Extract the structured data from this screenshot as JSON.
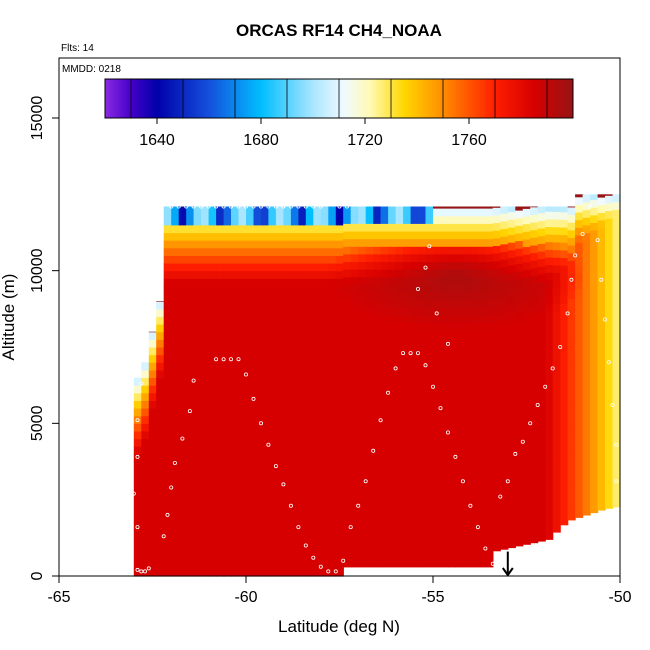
{
  "chart_data": {
    "type": "heatmap",
    "title": "ORCAS RF14 CH4_NOAA",
    "annotations": {
      "flights": "Flts: 14",
      "date": "MMDD: 0218"
    },
    "xlabel": "Latitude (deg N)",
    "ylabel": "Altitude (m)",
    "xlim": [
      -65,
      -50
    ],
    "ylim": [
      0,
      16500
    ],
    "x_ticks": [
      -65,
      -60,
      -55,
      -50
    ],
    "y_ticks": [
      0,
      5000,
      10000,
      15000
    ],
    "colorbar": {
      "range": [
        1620,
        1800
      ],
      "ticks": [
        1640,
        1680,
        1720,
        1760
      ],
      "placement": "top-inside"
    },
    "field": {
      "background_value": 1785,
      "profile_top": [
        [
          -63,
          6500
        ],
        [
          -62.8,
          7000
        ],
        [
          -62.6,
          8000
        ],
        [
          -62.5,
          8500
        ],
        [
          -62.3,
          9500
        ],
        [
          -62.2,
          10500
        ],
        [
          -62.2,
          11000
        ],
        [
          -62.2,
          12100
        ],
        [
          -51.2,
          12100
        ],
        [
          -51.2,
          12500
        ],
        [
          -50,
          12500
        ]
      ],
      "profile_bottom": [
        [
          -63,
          0
        ],
        [
          -57.5,
          0
        ],
        [
          -57.5,
          300
        ],
        [
          -53.5,
          300
        ],
        [
          -53.5,
          800
        ],
        [
          -52,
          1200
        ],
        [
          -51.5,
          1800
        ],
        [
          -50.5,
          2200
        ],
        [
          -50,
          2300
        ]
      ],
      "upper_core_value": 1795,
      "upper_core_center": [
        -54.5,
        9800
      ],
      "low_zone_values": [
        1640,
        1680,
        1700,
        1720,
        1740,
        1760
      ]
    },
    "flight_track": [
      [
        -62.9,
        200
      ],
      [
        -62.8,
        150
      ],
      [
        -62.7,
        150
      ],
      [
        -62.6,
        250
      ],
      [
        -62.9,
        1600
      ],
      [
        -63.0,
        2700
      ],
      [
        -62.9,
        3900
      ],
      [
        -62.9,
        5100
      ],
      [
        -62.8,
        6300
      ],
      [
        -62.7,
        7600
      ],
      [
        -62.2,
        1300
      ],
      [
        -62.1,
        2000
      ],
      [
        -62.0,
        2900
      ],
      [
        -61.9,
        3700
      ],
      [
        -61.7,
        4500
      ],
      [
        -61.5,
        5400
      ],
      [
        -61.4,
        6400
      ],
      [
        -60.8,
        7100
      ],
      [
        -60.6,
        7100
      ],
      [
        -60.4,
        7100
      ],
      [
        -60.2,
        7100
      ],
      [
        -60.0,
        6600
      ],
      [
        -59.8,
        5800
      ],
      [
        -59.6,
        5000
      ],
      [
        -59.4,
        4300
      ],
      [
        -59.2,
        3600
      ],
      [
        -59.0,
        3000
      ],
      [
        -58.8,
        2300
      ],
      [
        -58.6,
        1600
      ],
      [
        -58.4,
        1000
      ],
      [
        -58.2,
        600
      ],
      [
        -58.0,
        300
      ],
      [
        -57.8,
        150
      ],
      [
        -57.6,
        150
      ],
      [
        -57.4,
        500
      ],
      [
        -57.2,
        1600
      ],
      [
        -57.0,
        2300
      ],
      [
        -56.8,
        3100
      ],
      [
        -56.6,
        4100
      ],
      [
        -56.4,
        5100
      ],
      [
        -56.2,
        6000
      ],
      [
        -56.0,
        6800
      ],
      [
        -55.8,
        7300
      ],
      [
        -55.6,
        7300
      ],
      [
        -55.4,
        7300
      ],
      [
        -55.2,
        6900
      ],
      [
        -55.0,
        6200
      ],
      [
        -54.8,
        5500
      ],
      [
        -54.6,
        4700
      ],
      [
        -54.4,
        3900
      ],
      [
        -54.2,
        3100
      ],
      [
        -54.0,
        2300
      ],
      [
        -53.8,
        1600
      ],
      [
        -53.6,
        900
      ],
      [
        -53.4,
        400
      ],
      [
        -53.2,
        300
      ],
      [
        -53.0,
        300
      ],
      [
        -55.4,
        9400
      ],
      [
        -55.2,
        10100
      ],
      [
        -55.1,
        10800
      ],
      [
        -54.9,
        8600
      ],
      [
        -54.6,
        7600
      ],
      [
        -53.2,
        2600
      ],
      [
        -53.0,
        3100
      ],
      [
        -52.8,
        4000
      ],
      [
        -52.6,
        4400
      ],
      [
        -52.4,
        5000
      ],
      [
        -52.2,
        5600
      ],
      [
        -52.0,
        6200
      ],
      [
        -51.8,
        6800
      ],
      [
        -51.6,
        7500
      ],
      [
        -51.4,
        8600
      ],
      [
        -51.3,
        9700
      ],
      [
        -51.2,
        10500
      ],
      [
        -51.0,
        11200
      ],
      [
        -50.8,
        12100
      ],
      [
        -50.6,
        11000
      ],
      [
        -50.5,
        9700
      ],
      [
        -50.4,
        8400
      ],
      [
        -50.3,
        7000
      ],
      [
        -50.2,
        5600
      ],
      [
        -50.1,
        4300
      ],
      [
        -50.1,
        3100
      ],
      [
        -50.0,
        2200
      ],
      [
        -62.0,
        12100
      ],
      [
        -61.8,
        12100
      ],
      [
        -61.6,
        12100
      ],
      [
        -61.4,
        12100
      ],
      [
        -61.2,
        12100
      ],
      [
        -61.0,
        12100
      ],
      [
        -60.8,
        12100
      ],
      [
        -60.6,
        12100
      ],
      [
        -60.4,
        12100
      ],
      [
        -60.2,
        12100
      ],
      [
        -60.0,
        12100
      ],
      [
        -59.8,
        12100
      ],
      [
        -59.6,
        12100
      ],
      [
        -59.4,
        12100
      ],
      [
        -59.2,
        12100
      ],
      [
        -59.0,
        12100
      ],
      [
        -58.8,
        12100
      ],
      [
        -58.6,
        12100
      ],
      [
        -58.4,
        12100
      ],
      [
        -58.2,
        12100
      ],
      [
        -58.0,
        12100
      ],
      [
        -57.5,
        12100
      ],
      [
        -57.3,
        12100
      ],
      [
        -57.1,
        12200
      ],
      [
        -56.9,
        12200
      ],
      [
        -56.7,
        12200
      ],
      [
        -56.5,
        12200
      ],
      [
        -56.3,
        12200
      ],
      [
        -56.1,
        12200
      ],
      [
        -55.9,
        12200
      ],
      [
        -55.7,
        12200
      ],
      [
        -55.5,
        12200
      ],
      [
        -55.3,
        12200
      ]
    ],
    "marker": {
      "x": -53.0,
      "y": 800,
      "symbol": "down-arrow"
    }
  }
}
